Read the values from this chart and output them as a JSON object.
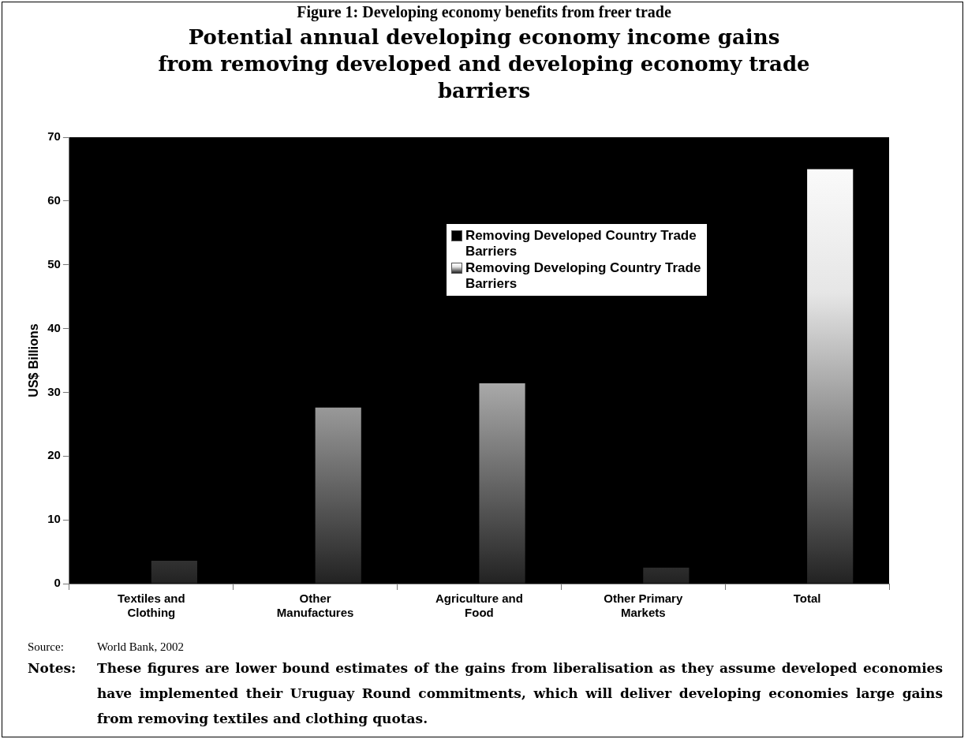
{
  "chart_data": {
    "type": "bar",
    "title": "Figure 1: Developing economy benefits from freer trade",
    "subtitle": "Potential annual developing economy income gains from removing developed and developing economy trade barriers",
    "ylabel": "US$ Billions",
    "categories": [
      "Textiles and Clothing",
      "Other Manufactures",
      "Agriculture and Food",
      "Other Primary Markets",
      "Total"
    ],
    "series": [
      {
        "name": "Removing Developed Country Trade Barriers",
        "color": "#000000",
        "values": [
          null,
          null,
          null,
          null,
          null
        ]
      },
      {
        "name": "Removing Developing Country Trade Barriers",
        "color": "#e6e6e6",
        "values": [
          3.6,
          27.6,
          31.4,
          2.5,
          65.0
        ]
      }
    ],
    "ylim": [
      0,
      70
    ],
    "yticks": [
      0,
      10,
      20,
      30,
      40,
      50,
      60,
      70
    ],
    "grid": false,
    "legend": "top right",
    "annotations": [
      "Source: World Bank, 2002",
      "Notes: These figures are lower bound estimates of the gains from liberalisation as they assume developed economies have implemented their Uruguay Round commitments, which will deliver developing economies large gains from removing textiles and clothing quotas."
    ]
  }
}
